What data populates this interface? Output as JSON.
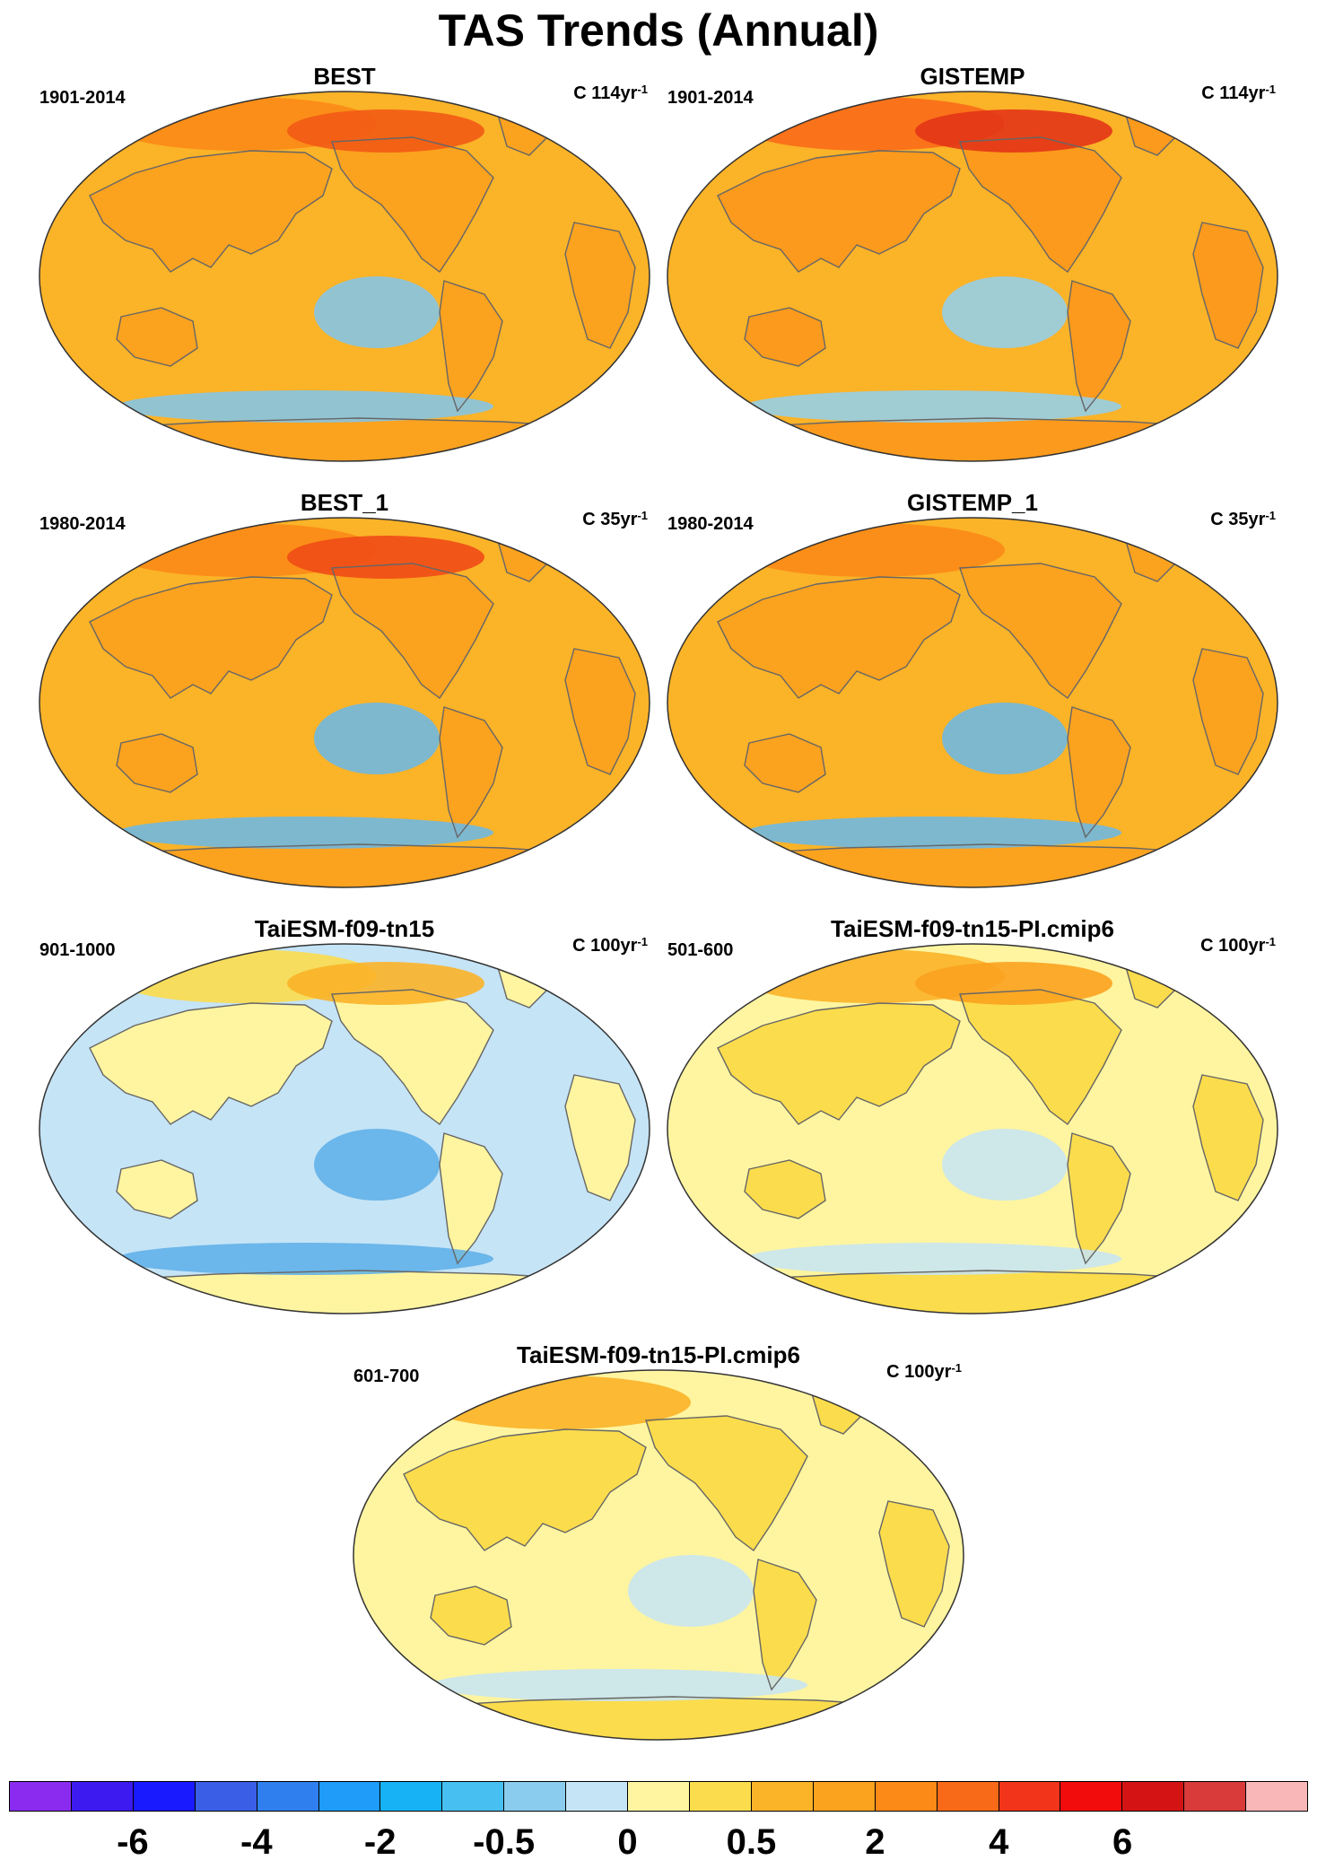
{
  "title": "TAS Trends (Annual)",
  "panels": [
    {
      "name": "BEST",
      "period": "1901-2014",
      "units_text": "C 114yr",
      "units_sup": "-1",
      "base": "#fbb328",
      "land": "#fba21f",
      "highlights": [
        "#fb8a16",
        "#f25a14"
      ],
      "cool": "#7fc6ef"
    },
    {
      "name": "GISTEMP",
      "period": "1901-2014",
      "units_text": "C 114yr",
      "units_sup": "-1",
      "base": "#fbb328",
      "land": "#fb9a1c",
      "highlights": [
        "#f96a18",
        "#e33517"
      ],
      "cool": "#8fd0f2"
    },
    {
      "name": "BEST_1",
      "period": "1980-2014",
      "units_text": "C 35yr",
      "units_sup": "-1",
      "base": "#fbb328",
      "land": "#fba21f",
      "highlights": [
        "#fb8a16",
        "#ef4b16"
      ],
      "cool": "#66b8ec"
    },
    {
      "name": "GISTEMP_1",
      "period": "1980-2014",
      "units_text": "C 35yr",
      "units_sup": "-1",
      "base": "#fbb328",
      "land": "#fba21f",
      "highlights": [
        "#fb8a16"
      ],
      "cool": "#66b8ec"
    },
    {
      "name": "TaiESM-f09-tn15",
      "period": "901-1000",
      "units_text": "C 100yr",
      "units_sup": "-1",
      "base": "#c5e4f6",
      "land": "#fff5a0",
      "highlights": [
        "#fbdc4c",
        "#fbb328"
      ],
      "cool": "#5aaee8"
    },
    {
      "name": "TaiESM-f09-tn15-PI.cmip6",
      "period": "501-600",
      "units_text": "C 100yr",
      "units_sup": "-1",
      "base": "#fff5a0",
      "land": "#fbdc4c",
      "highlights": [
        "#fbb328",
        "#fba21f"
      ],
      "cool": "#c5e4f6"
    },
    {
      "name": "TaiESM-f09-tn15-PI.cmip6",
      "period": "601-700",
      "units_text": "C 100yr",
      "units_sup": "-1",
      "base": "#fff5a0",
      "land": "#fbdc4c",
      "highlights": [
        "#fbb328"
      ],
      "cool": "#c5e4f6"
    }
  ],
  "colorbar": {
    "colors": [
      "#8a2bef",
      "#3c1af0",
      "#1a1aff",
      "#3a5fe6",
      "#2f7fef",
      "#1f9cf9",
      "#17b2f6",
      "#47c0f1",
      "#89ccee",
      "#c5e4f6",
      "#fff5a0",
      "#fbdc4c",
      "#fbb328",
      "#fba21f",
      "#fb8a16",
      "#f96a18",
      "#f2341a",
      "#f20c0c",
      "#d41414",
      "#d93a3a",
      "#f9b7b7"
    ],
    "labels": [
      "-6",
      "-4",
      "-2",
      "-0.5",
      "0",
      "0.5",
      "2",
      "4",
      "6"
    ]
  }
}
